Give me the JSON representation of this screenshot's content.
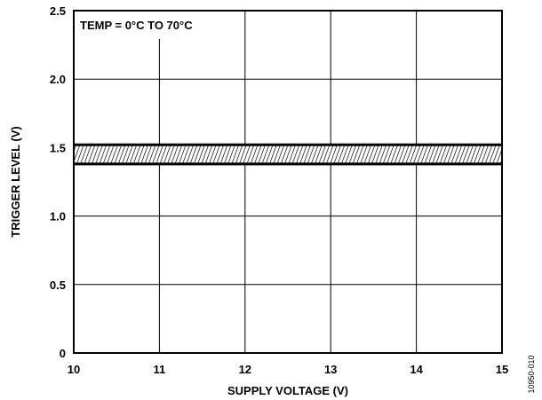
{
  "chart_data": {
    "type": "line",
    "title": "",
    "xlabel": "SUPPLY VOLTAGE (V)",
    "ylabel": "TRIGGER LEVEL (V)",
    "xlim": [
      10,
      15
    ],
    "ylim": [
      0,
      2.5
    ],
    "x_ticks": [
      10,
      11,
      12,
      13,
      14,
      15
    ],
    "x_tick_labels": [
      "10",
      "11",
      "12",
      "13",
      "14",
      "15"
    ],
    "y_ticks": [
      0,
      0.5,
      1.0,
      1.5,
      2.0,
      2.5
    ],
    "y_tick_labels": [
      "0",
      "0.5",
      "1.0",
      "1.5",
      "2.0",
      "2.5"
    ],
    "grid": true,
    "annotation": "TEMP = 0°C TO 70°C",
    "figure_id": "10950-010",
    "band": {
      "x": [
        10,
        15
      ],
      "upper": [
        1.52,
        1.52
      ],
      "lower": [
        1.38,
        1.38
      ],
      "fill": "hatched"
    },
    "series": [
      {
        "x": [
          10,
          15
        ],
        "y": [
          1.52,
          1.52
        ]
      },
      {
        "x": [
          10,
          15
        ],
        "y": [
          1.38,
          1.38
        ]
      }
    ],
    "colors": {
      "line": "#000000",
      "background": "#ffffff"
    }
  }
}
